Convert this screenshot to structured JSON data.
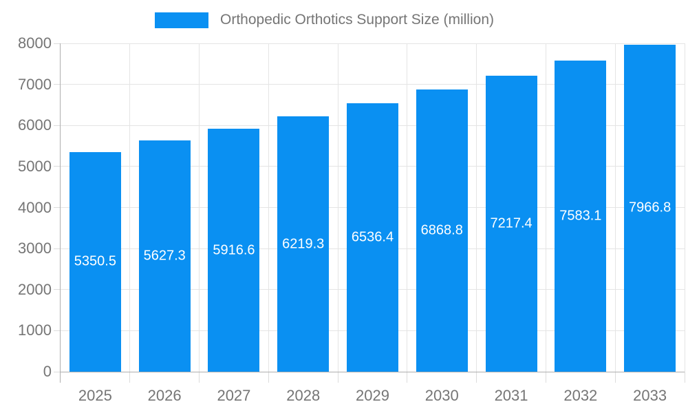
{
  "legend": {
    "label": "Orthopedic Orthotics Support Size (million)"
  },
  "chart_data": {
    "type": "bar",
    "title": "Orthopedic Orthotics Support Size (million)",
    "categories": [
      "2025",
      "2026",
      "2027",
      "2028",
      "2029",
      "2030",
      "2031",
      "2032",
      "2033"
    ],
    "series": [
      {
        "name": "Orthopedic Orthotics Support Size (million)",
        "values": [
          5350.5,
          5627.3,
          5916.6,
          6219.3,
          6536.4,
          6868.8,
          7217.4,
          7583.1,
          7966.8
        ]
      }
    ],
    "bar_labels": [
      "5350.5",
      "5627.3",
      "5916.6",
      "6219.3",
      "6536.4",
      "6868.8",
      "7217.4",
      "7583.1",
      "7966.8"
    ],
    "xlabel": "",
    "ylabel": "",
    "ylim": [
      0,
      8000
    ],
    "y_ticks": [
      0,
      1000,
      2000,
      3000,
      4000,
      5000,
      6000,
      7000,
      8000
    ],
    "grid": true,
    "legend_position": "top",
    "colors": {
      "bar": "#0a90f2",
      "grid": "#e4e4e4",
      "axis": "#aeaeae",
      "tick": "#dcdcdc",
      "text": "#757575",
      "bar_label": "#ffffff",
      "background": "#ffffff"
    }
  }
}
